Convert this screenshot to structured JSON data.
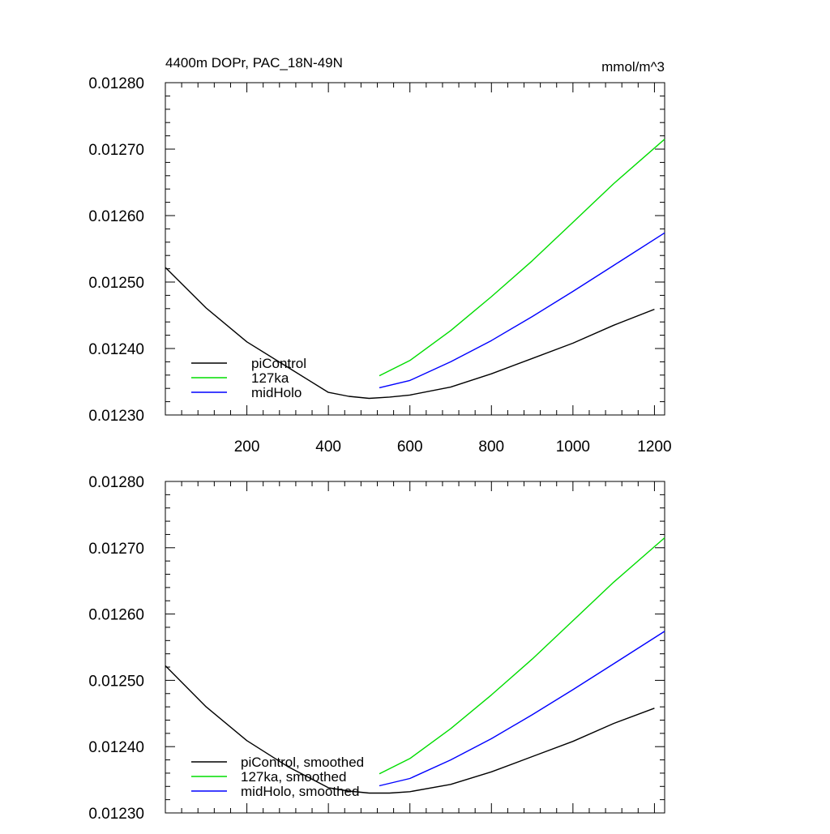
{
  "chart_data": [
    {
      "type": "line",
      "title": "4400m DOPr, PAC_18N-49N",
      "units": "mmol/m^3",
      "xlim": [
        0,
        1225
      ],
      "ylim": [
        0.0123,
        0.0128
      ],
      "x_ticks": [
        200,
        400,
        600,
        800,
        1000,
        1200
      ],
      "x_tick_labels": [
        "200",
        "400",
        "600",
        "800",
        "1000",
        "1200"
      ],
      "y_ticks": [
        0.0123,
        0.0124,
        0.0125,
        0.0126,
        0.0127,
        0.0128
      ],
      "y_tick_labels": [
        "0.01230",
        "0.01240",
        "0.01250",
        "0.01260",
        "0.01270",
        "0.01280"
      ],
      "legend_position": "bottom-left",
      "series": [
        {
          "name": "piControl",
          "color": "#000000",
          "x": [
            0,
            100,
            200,
            300,
            400,
            450,
            500,
            550,
            600,
            700,
            800,
            900,
            1000,
            1100,
            1200
          ],
          "y": [
            0.012522,
            0.012461,
            0.01241,
            0.012372,
            0.012334,
            0.012328,
            0.012325,
            0.012327,
            0.01233,
            0.012342,
            0.012362,
            0.012385,
            0.012408,
            0.012435,
            0.012459
          ]
        },
        {
          "name": "127ka",
          "color": "#00dd00",
          "x": [
            525,
            600,
            700,
            800,
            900,
            1000,
            1100,
            1225
          ],
          "y": [
            0.012359,
            0.012382,
            0.012427,
            0.012478,
            0.012532,
            0.01259,
            0.012648,
            0.012715
          ]
        },
        {
          "name": "midHolo",
          "color": "#0000ff",
          "x": [
            525,
            600,
            700,
            800,
            900,
            1000,
            1100,
            1225
          ],
          "y": [
            0.012341,
            0.012352,
            0.01238,
            0.012412,
            0.012448,
            0.012486,
            0.012525,
            0.012574
          ]
        }
      ]
    },
    {
      "type": "line",
      "xlim": [
        0,
        1225
      ],
      "ylim": [
        0.0123,
        0.0128
      ],
      "x_ticks": [
        200,
        400,
        600,
        800,
        1000,
        1200
      ],
      "y_ticks": [
        0.0123,
        0.0124,
        0.0125,
        0.0126,
        0.0127,
        0.0128
      ],
      "y_tick_labels": [
        "0.01230",
        "0.01240",
        "0.01250",
        "0.01260",
        "0.01270",
        "0.01280"
      ],
      "legend_position": "bottom-left",
      "series": [
        {
          "name": "piControl, smoothed",
          "color": "#000000",
          "x": [
            0,
            100,
            200,
            300,
            400,
            450,
            500,
            550,
            600,
            700,
            800,
            900,
            1000,
            1100,
            1200
          ],
          "y": [
            0.012522,
            0.01246,
            0.012409,
            0.01237,
            0.012338,
            0.012333,
            0.01233,
            0.01233,
            0.012332,
            0.012343,
            0.012362,
            0.012385,
            0.012408,
            0.012435,
            0.012458
          ]
        },
        {
          "name": "127ka, smoothed",
          "color": "#00dd00",
          "x": [
            525,
            600,
            700,
            800,
            900,
            1000,
            1100,
            1225
          ],
          "y": [
            0.012359,
            0.012382,
            0.012427,
            0.012478,
            0.012532,
            0.01259,
            0.012648,
            0.012715
          ]
        },
        {
          "name": "midHolo, smoothed",
          "color": "#0000ff",
          "x": [
            525,
            600,
            700,
            800,
            900,
            1000,
            1100,
            1225
          ],
          "y": [
            0.012341,
            0.012352,
            0.01238,
            0.012412,
            0.012448,
            0.012486,
            0.012525,
            0.012574
          ]
        }
      ]
    }
  ]
}
